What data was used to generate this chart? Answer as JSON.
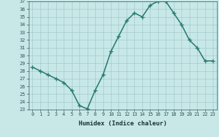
{
  "xlabel": "Humidex (Indice chaleur)",
  "x": [
    0,
    1,
    2,
    3,
    4,
    5,
    6,
    7,
    8,
    9,
    10,
    11,
    12,
    13,
    14,
    15,
    16,
    17,
    18,
    19,
    20,
    21,
    22,
    23
  ],
  "y": [
    28.5,
    28.0,
    27.5,
    27.0,
    26.5,
    25.5,
    23.5,
    23.1,
    25.5,
    27.5,
    30.5,
    32.5,
    34.5,
    35.5,
    35.0,
    36.5,
    37.0,
    37.0,
    35.5,
    34.0,
    32.0,
    31.0,
    29.3,
    29.3
  ],
  "ylim": [
    23,
    37
  ],
  "xlim_min": -0.5,
  "xlim_max": 23.5,
  "yticks": [
    23,
    24,
    25,
    26,
    27,
    28,
    29,
    30,
    31,
    32,
    33,
    34,
    35,
    36,
    37
  ],
  "xticks": [
    0,
    1,
    2,
    3,
    4,
    5,
    6,
    7,
    8,
    9,
    10,
    11,
    12,
    13,
    14,
    15,
    16,
    17,
    18,
    19,
    20,
    21,
    22,
    23
  ],
  "line_color": "#2a7a70",
  "bg_color": "#c8e8e8",
  "grid_color": "#a0c8c8",
  "tick_color": "#2a5050",
  "xlabel_color": "#1a3030",
  "marker_size": 2.5,
  "line_width": 1.2,
  "tick_fontsize": 5.0,
  "xlabel_fontsize": 6.5
}
